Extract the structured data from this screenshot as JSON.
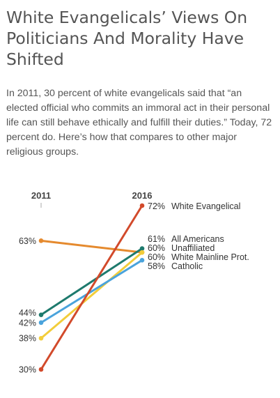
{
  "header": {
    "title": "White Evangelicals’ Views On Politicians And Morality Have Shifted",
    "subtitle": "In 2011, 30 percent of white evangelicals said that “an elected official who commits an immoral act in their personal life can still behave ethically and fulfill their duties.” Today, 72 percent do. Here’s how that compares to other major religious groups."
  },
  "chart_data": {
    "type": "line",
    "subtype": "slope",
    "x": [
      "2011",
      "2016"
    ],
    "ylim": [
      30,
      72
    ],
    "grid": false,
    "legend": "direct labels at right end",
    "series": [
      {
        "name": "White Evangelical",
        "values": [
          30,
          72
        ],
        "color": "#d24a2b"
      },
      {
        "name": "All Americans",
        "values": [
          44,
          61
        ],
        "color": "#1e7a6d"
      },
      {
        "name": "Unaffiliated",
        "values": [
          63,
          60
        ],
        "color": "#e58a2e"
      },
      {
        "name": "White Mainline Prot.",
        "values": [
          38,
          60
        ],
        "color": "#f2cd3b"
      },
      {
        "name": "Catholic",
        "values": [
          42,
          58
        ],
        "color": "#4aa3dc"
      }
    ]
  }
}
